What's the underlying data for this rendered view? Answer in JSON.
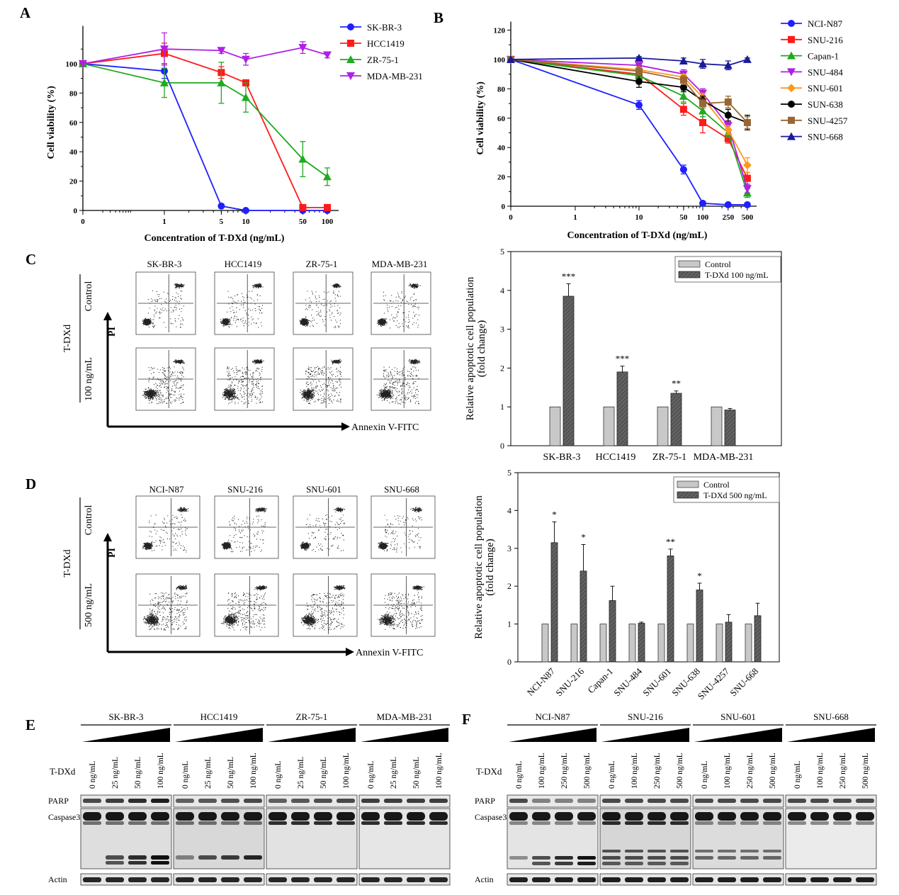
{
  "panels": {
    "A": "A",
    "B": "B",
    "C": "C",
    "D": "D",
    "E": "E",
    "F": "F"
  },
  "colors": {
    "blue": "#1f1fff",
    "red": "#ff1a1a",
    "green": "#1faa1f",
    "purple": "#b01fe6",
    "orange": "#ff9a1a",
    "black": "#000000",
    "brown": "#996633",
    "navy": "#1a1a99",
    "control_bar": "#c8c8c8",
    "treated_bar": "#555555"
  },
  "chart_data": [
    {
      "id": "A",
      "type": "line",
      "xlabel": "Concentration of T-DXd (ng/mL)",
      "ylabel": "Cell viability (%)",
      "ylim": [
        0,
        120
      ],
      "yticks": [
        0,
        20,
        40,
        60,
        80,
        100
      ],
      "xscale": "log",
      "xtick_labels": [
        "0",
        "1",
        "5",
        "10",
        "50",
        "100"
      ],
      "x": [
        0,
        1,
        5,
        10,
        50,
        100
      ],
      "legend_position": "top-right",
      "series": [
        {
          "name": "SK-BR-3",
          "color": "blue",
          "marker": "circle",
          "values": [
            100,
            95,
            3,
            0,
            0,
            0
          ],
          "errors": [
            0,
            5,
            1,
            1,
            1,
            1
          ]
        },
        {
          "name": "HCC1419",
          "color": "red",
          "marker": "square",
          "values": [
            100,
            107,
            94,
            87,
            2,
            2
          ],
          "errors": [
            0,
            7,
            4,
            2,
            1,
            1
          ]
        },
        {
          "name": "ZR-75-1",
          "color": "green",
          "marker": "triangle-up",
          "values": [
            100,
            87,
            87,
            77,
            35,
            23
          ],
          "errors": [
            0,
            10,
            14,
            10,
            12,
            6
          ]
        },
        {
          "name": "MDA-MB-231",
          "color": "purple",
          "marker": "triangle-down",
          "values": [
            100,
            110,
            109,
            103,
            111,
            106
          ],
          "errors": [
            0,
            11,
            2,
            4,
            4,
            2
          ]
        }
      ]
    },
    {
      "id": "B",
      "type": "line",
      "xlabel": "Concentration of T-DXd (ng/mL)",
      "ylabel": "Cell viability (%)",
      "ylim": [
        0,
        120
      ],
      "yticks": [
        0,
        20,
        40,
        60,
        80,
        100,
        120
      ],
      "xscale": "log",
      "xtick_labels": [
        "0",
        "1",
        "10",
        "50",
        "100",
        "250",
        "500"
      ],
      "x": [
        0,
        10,
        50,
        100,
        250,
        500
      ],
      "legend_position": "top-right",
      "series": [
        {
          "name": "NCI-N87",
          "color": "blue",
          "marker": "circle",
          "values": [
            100,
            69,
            25,
            2,
            1,
            1
          ],
          "errors": [
            0,
            3,
            3,
            1,
            1,
            1
          ]
        },
        {
          "name": "SNU-216",
          "color": "red",
          "marker": "square",
          "values": [
            100,
            90,
            66,
            57,
            46,
            19
          ],
          "errors": [
            0,
            4,
            4,
            7,
            3,
            4
          ]
        },
        {
          "name": "Capan-1",
          "color": "green",
          "marker": "triangle-up",
          "values": [
            100,
            89,
            75,
            65,
            50,
            9
          ],
          "errors": [
            0,
            4,
            4,
            4,
            3,
            3
          ]
        },
        {
          "name": "SNU-484",
          "color": "purple",
          "marker": "triangle-down",
          "values": [
            100,
            96,
            90,
            77,
            55,
            12
          ],
          "errors": [
            0,
            2,
            3,
            3,
            3,
            3
          ]
        },
        {
          "name": "SNU-601",
          "color": "orange",
          "marker": "diamond",
          "values": [
            100,
            93,
            88,
            74,
            52,
            28
          ],
          "errors": [
            0,
            2,
            2,
            3,
            3,
            5
          ]
        },
        {
          "name": "SUN-638",
          "color": "black",
          "marker": "circle",
          "values": [
            100,
            85,
            81,
            72,
            62,
            57
          ],
          "errors": [
            0,
            4,
            3,
            3,
            4,
            5
          ]
        },
        {
          "name": "SNU-4257",
          "color": "brown",
          "marker": "square",
          "values": [
            100,
            92,
            86,
            70,
            71,
            57
          ],
          "errors": [
            0,
            3,
            3,
            3,
            4,
            4
          ]
        },
        {
          "name": "SNU-668",
          "color": "navy",
          "marker": "triangle-up",
          "values": [
            100,
            101,
            99,
            97,
            96,
            100
          ],
          "errors": [
            0,
            1,
            2,
            3,
            3,
            1
          ]
        }
      ]
    },
    {
      "id": "C-bar",
      "type": "bar",
      "ylabel": "Relative apoptotic cell population (fold change)",
      "ylim": [
        0,
        5
      ],
      "yticks": [
        0,
        1,
        2,
        3,
        4,
        5
      ],
      "categories": [
        "SK-BR-3",
        "HCC1419",
        "ZR-75-1",
        "MDA-MB-231"
      ],
      "legend_position": "top-right",
      "series": [
        {
          "name": "Control",
          "color": "control_bar",
          "values": [
            1,
            1,
            1,
            1
          ],
          "errors": [
            0,
            0,
            0,
            0
          ]
        },
        {
          "name": "T-DXd 100 ng/mL",
          "color": "treated_bar",
          "values": [
            3.85,
            1.9,
            1.35,
            0.92
          ],
          "errors": [
            0.32,
            0.15,
            0.06,
            0.04
          ]
        }
      ],
      "significance": [
        "***",
        "***",
        "**",
        ""
      ]
    },
    {
      "id": "D-bar",
      "type": "bar",
      "ylabel": "Relative apoptotic cell population (fold change)",
      "ylim": [
        0,
        5
      ],
      "yticks": [
        0,
        1,
        2,
        3,
        4,
        5
      ],
      "categories": [
        "NCI-N87",
        "SNU-216",
        "Capan-1",
        "SNU-484",
        "SNU-601",
        "SNU-638",
        "SNU-4257",
        "SNU-668"
      ],
      "legend_position": "top-right",
      "series": [
        {
          "name": "Control",
          "color": "control_bar",
          "values": [
            1,
            1,
            1,
            1,
            1,
            1,
            1,
            1
          ],
          "errors": [
            0,
            0,
            0,
            0,
            0,
            0,
            0,
            0
          ]
        },
        {
          "name": "T-DXd 500 ng/mL",
          "color": "treated_bar",
          "values": [
            3.15,
            2.4,
            1.62,
            1.02,
            2.8,
            1.9,
            1.05,
            1.22
          ],
          "errors": [
            0.55,
            0.7,
            0.38,
            0.03,
            0.18,
            0.18,
            0.2,
            0.33
          ]
        }
      ],
      "significance": [
        "*",
        "*",
        "",
        "",
        "**",
        "*",
        "",
        ""
      ]
    }
  ],
  "flow_C": {
    "cells": [
      "SK-BR-3",
      "HCC1419",
      "ZR-75-1",
      "MDA-MB-231"
    ],
    "row_top": "Control",
    "row_bottom": "100 ng/mL",
    "group": "T-DXd",
    "y_axis": "PI",
    "x_axis": "Annexin V-FITC"
  },
  "flow_D": {
    "cells": [
      "NCI-N87",
      "SNU-216",
      "SNU-601",
      "SNU-668"
    ],
    "row_top": "Control",
    "row_bottom": "500 ng/mL",
    "group": "T-DXd",
    "y_axis": "PI",
    "x_axis": "Annexin V-FITC"
  },
  "blot_E": {
    "cells": [
      "SK-BR-3",
      "HCC1419",
      "ZR-75-1",
      "MDA-MB-231"
    ],
    "doses": [
      "0 ng/mL",
      "25 ng/mL",
      "50 ng/mL",
      "100 ng/mL"
    ],
    "treatment": "T-DXd",
    "proteins": [
      "PARP",
      "Caspase3",
      "Actin"
    ]
  },
  "blot_F": {
    "cells": [
      "NCI-N87",
      "SNU-216",
      "SNU-601",
      "SNU-668"
    ],
    "doses": [
      "0 ng/mL",
      "100 ng/mL",
      "250 ng/mL",
      "500 ng/mL"
    ],
    "treatment": "T-DXd",
    "proteins": [
      "PARP",
      "Caspase3",
      "Actin"
    ]
  }
}
